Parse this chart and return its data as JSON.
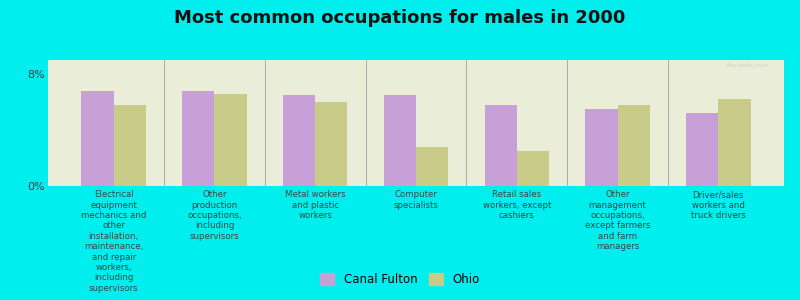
{
  "title": "Most common occupations for males in 2000",
  "background_color": "#00EEEE",
  "plot_background_color": "#EAEDD8",
  "categories": [
    "Electrical\nequipment\nmechanics and\nother\ninstallation,\nmaintenance,\nand repair\nworkers,\nincluding\nsupervisors",
    "Other\nproduction\noccupations,\nincluding\nsupervisors",
    "Metal workers\nand plastic\nworkers",
    "Computer\nspecialists",
    "Retail sales\nworkers, except\ncashiers",
    "Other\nmanagement\noccupations,\nexcept farmers\nand farm\nmanagers",
    "Driver/sales\nworkers and\ntruck drivers"
  ],
  "canal_fulton_values": [
    6.8,
    6.8,
    6.5,
    6.5,
    5.8,
    5.5,
    5.2
  ],
  "ohio_values": [
    5.8,
    6.6,
    6.0,
    2.8,
    2.5,
    5.8,
    6.2
  ],
  "canal_fulton_color": "#C8A0D8",
  "ohio_color": "#C8CC88",
  "ylim": [
    0,
    9
  ],
  "yticks": [
    0,
    8
  ],
  "ytick_labels": [
    "0%",
    "8%"
  ],
  "legend_canal_fulton": "Canal Fulton",
  "legend_ohio": "Ohio",
  "bar_width": 0.32,
  "title_fontsize": 13
}
